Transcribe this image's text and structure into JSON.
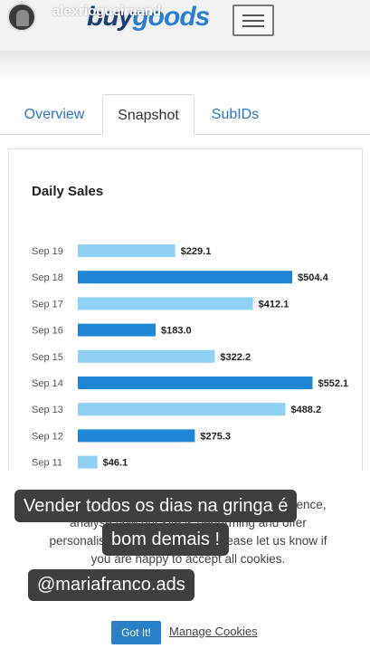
{
  "story": {
    "username": "alexriogueiraand"
  },
  "brand": {
    "logo_part1": "buy",
    "logo_part2": "goods",
    "menu_icon": "hamburger-icon"
  },
  "tabs": [
    {
      "label": "Overview",
      "active": false
    },
    {
      "label": "Snapshot",
      "active": true
    },
    {
      "label": "SubIDs",
      "active": false
    }
  ],
  "card": {
    "title": "Daily Sales"
  },
  "chart_data": {
    "type": "bar",
    "orientation": "horizontal",
    "title": "Daily Sales",
    "categories": [
      "Sep 19",
      "Sep 18",
      "Sep 17",
      "Sep 16",
      "Sep 15",
      "Sep 14",
      "Sep 13",
      "Sep 12",
      "Sep 11"
    ],
    "values": [
      229.1,
      504.4,
      412.1,
      183.0,
      322.2,
      552.1,
      488.2,
      275.3,
      46.1
    ],
    "value_labels": [
      "$229.1",
      "$504.4",
      "$412.1",
      "$183.0",
      "$322.2",
      "$552.1",
      "$488.2",
      "$275.3",
      "$46.1"
    ],
    "highlighted": [
      false,
      true,
      false,
      true,
      false,
      true,
      false,
      true,
      false
    ],
    "colors": {
      "light": "#8fd0f3",
      "dark": "#1f86d6"
    },
    "xlim": [
      0,
      600
    ],
    "grid": false,
    "legend": "none"
  },
  "cookie": {
    "text": "We use cookies to improve your online experience, analyse how our site is performing and offer personalised ads and content. Please let us know if you are happy to accept all cookies.",
    "accept_label": "Got It!",
    "manage_label": "Manage Cookies"
  },
  "overlays": {
    "line1": "Vender todos os dias na gringa  é",
    "line2": "bom demais !",
    "mention": "@mariafranco.ads"
  }
}
